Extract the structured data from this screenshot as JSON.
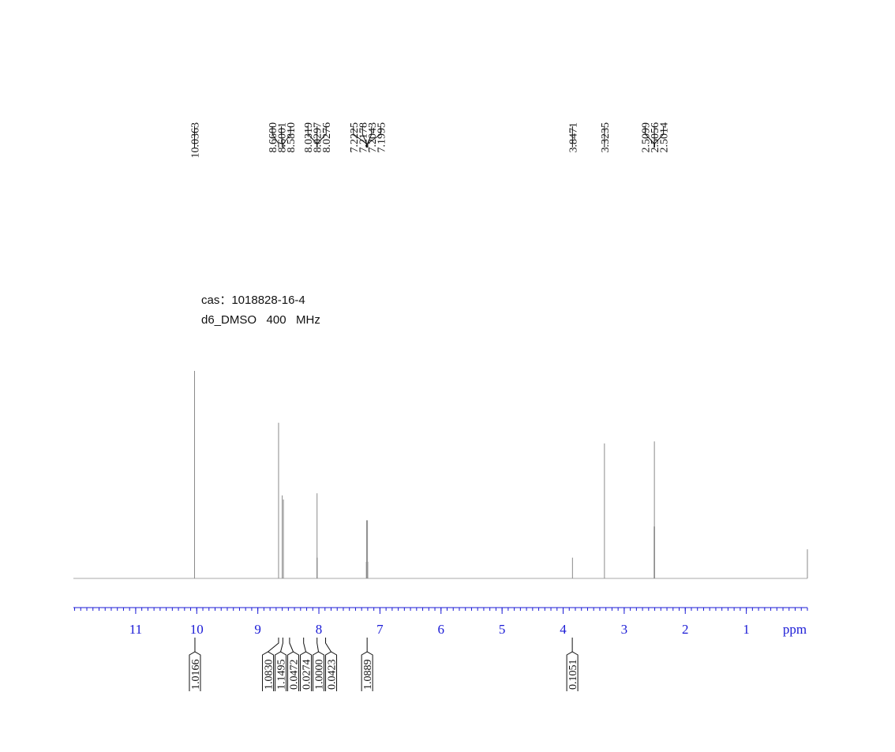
{
  "chart_data": {
    "type": "nmr",
    "annotations": [
      "cas：1018828-16-4",
      "d6_DMSO   400   MHz"
    ],
    "xlabel": "ppm",
    "xlim": [
      12.02,
      0
    ],
    "xticks": [
      11,
      10,
      9,
      8,
      7,
      6,
      5,
      4,
      3,
      2,
      1
    ],
    "minor_tick_step": 0.1,
    "axis_color": "#1a1ad6",
    "peak_color": "#8a8a8a",
    "peaks": {
      "x": [
        10.0363,
        8.66,
        8.6001,
        8.581,
        8.0319,
        8.0297,
        8.0276,
        7.2225,
        7.2178,
        7.2043,
        7.1995,
        3.8471,
        3.3235,
        2.5099,
        2.5056,
        2.5014,
        0.0
      ],
      "x_labels": [
        "10.0363",
        "8.6600",
        "8.6001",
        "8.5810",
        "8.0319",
        "8.0297",
        "8.0276",
        "7.2225",
        "7.2178",
        "7.2043",
        "7.1995",
        "3.8471",
        "3.3235",
        "2.5099",
        "2.5056",
        "2.5014",
        null
      ],
      "values": [
        100,
        75,
        40,
        38,
        10,
        41,
        10,
        8,
        28,
        28,
        8,
        10,
        65,
        25,
        66,
        25,
        14
      ]
    },
    "integrals": {
      "x": [
        10.03,
        8.66,
        8.59,
        8.48,
        8.25,
        8.03,
        7.89,
        7.21,
        3.85
      ],
      "values": [
        {
          "value": 1.0166,
          "label": "1.0166"
        },
        {
          "value": 1.083,
          "label": "1.0830"
        },
        {
          "value": 1.1495,
          "label": "1.1495"
        },
        {
          "value": 0.0472,
          "label": "0.0472"
        },
        {
          "value": 0.0274,
          "label": "0.0274"
        },
        {
          "value": 1.0,
          "label": "1.0000"
        },
        {
          "value": 0.0423,
          "label": "0.0423"
        },
        {
          "value": 1.0889,
          "label": "1.0889"
        },
        {
          "value": 0.1051,
          "label": "0.1051"
        }
      ]
    }
  }
}
